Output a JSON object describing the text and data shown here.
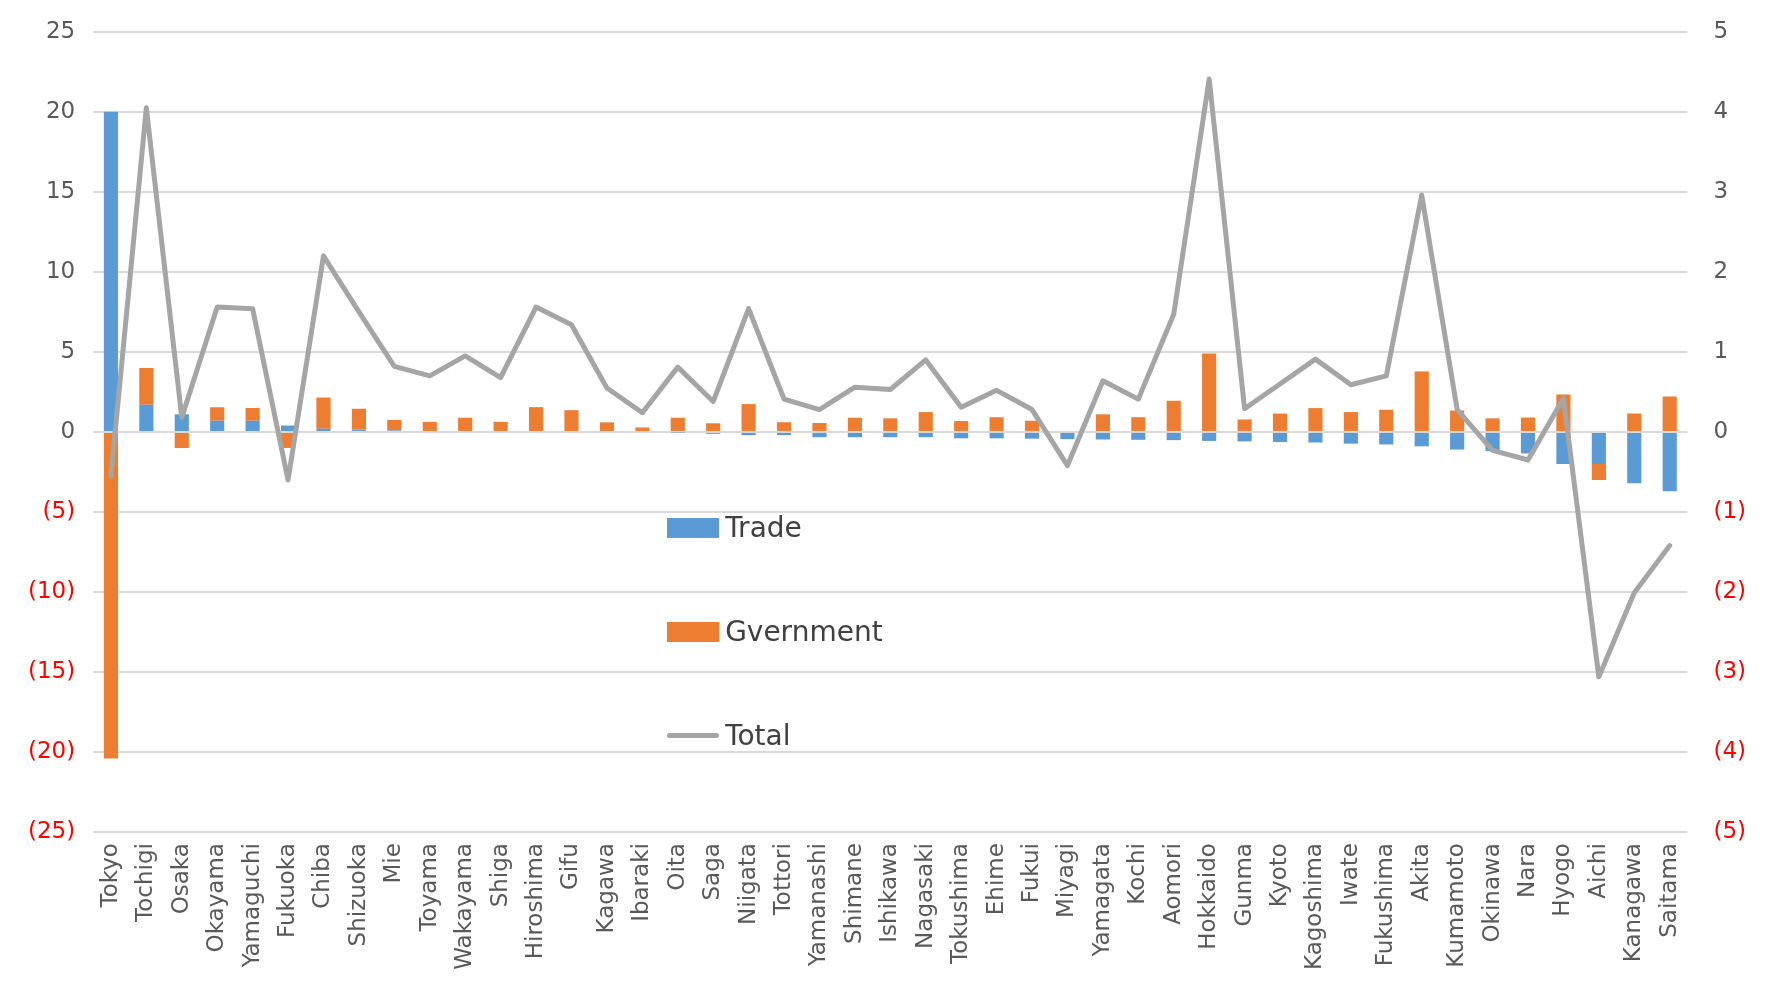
{
  "chart_data": {
    "type": "bar",
    "stacked": true,
    "grid": "y",
    "legend": "center",
    "categories": [
      "Tokyo",
      "Tochigi",
      "Osaka",
      "Okayama",
      "Yamaguchi",
      "Fukuoka",
      "Chiba",
      "Shizuoka",
      "Mie",
      "Toyama",
      "Wakayama",
      "Shiga",
      "Hiroshima",
      "Gifu",
      "Kagawa",
      "Ibaraki",
      "Oita",
      "Saga",
      "Niigata",
      "Tottori",
      "Yamanashi",
      "Shimane",
      "Ishikawa",
      "Nagasaki",
      "Tokushima",
      "Ehime",
      "Fukui",
      "Miyagi",
      "Yamagata",
      "Kochi",
      "Aomori",
      "Hokkaido",
      "Gunma",
      "Kyoto",
      "Kagoshima",
      "Iwate",
      "Fukushima",
      "Akita",
      "Kumamoto",
      "Okinawa",
      "Nara",
      "Hyogo",
      "Aichi",
      "Kanagawa",
      "Saitama"
    ],
    "series": [
      {
        "name": "Trade",
        "color": "#5b9bd5",
        "values": [
          20,
          1.7,
          1.1,
          0.7,
          0.7,
          0.4,
          0.2,
          0.15,
          0.1,
          null,
          null,
          0,
          0,
          0,
          0,
          null,
          -0.03,
          -0.12,
          -0.2,
          -0.2,
          -0.33,
          -0.33,
          -0.33,
          -0.33,
          -0.4,
          -0.4,
          -0.42,
          -0.45,
          -0.47,
          -0.49,
          -0.51,
          -0.56,
          -0.59,
          -0.63,
          -0.66,
          -0.73,
          -0.78,
          -0.9,
          -1.1,
          -1.2,
          -1.34,
          -2.0,
          -2.0,
          -3.2,
          -3.7
        ]
      },
      {
        "name": "Gvernment",
        "color": "#ed7d31",
        "values": [
          -20.4,
          2.3,
          -1.0,
          0.85,
          0.8,
          -1.0,
          1.95,
          1.3,
          0.65,
          0.63,
          0.89,
          0.63,
          1.55,
          1.36,
          0.6,
          0.28,
          0.89,
          0.54,
          1.74,
          0.61,
          0.56,
          0.89,
          0.85,
          1.24,
          0.68,
          0.92,
          0.7,
          0,
          1.1,
          0.92,
          1.95,
          4.9,
          0.78,
          1.15,
          1.49,
          1.24,
          1.39,
          3.78,
          1.34,
          0.85,
          0.9,
          2.34,
          -1.0,
          1.15,
          2.22
        ]
      },
      {
        "name": "Total",
        "type": "line",
        "axis": "y2",
        "color": "#a5a5a5",
        "values": [
          -0.55,
          4.05,
          0.18,
          1.56,
          1.54,
          -0.6,
          2.2,
          1.5,
          0.82,
          0.7,
          0.95,
          0.68,
          1.56,
          1.34,
          0.55,
          0.24,
          0.81,
          0.38,
          1.54,
          0.41,
          0.28,
          0.56,
          0.53,
          0.9,
          0.31,
          0.52,
          0.28,
          -0.42,
          0.64,
          0.41,
          1.47,
          4.41,
          0.29,
          0.6,
          0.91,
          0.59,
          0.7,
          2.96,
          0.28,
          -0.23,
          -0.35,
          0.42,
          -3.06,
          -2.01,
          -1.42
        ]
      }
    ],
    "ylim": [
      -25,
      25
    ],
    "yticks": [
      {
        "value": -25,
        "label": "(25)"
      },
      {
        "value": -20,
        "label": "(20)"
      },
      {
        "value": -15,
        "label": "(15)"
      },
      {
        "value": -10,
        "label": "(10)"
      },
      {
        "value": -5,
        "label": "(5)"
      },
      0,
      5,
      10,
      15,
      20,
      25
    ],
    "y2lim": [
      -5,
      5
    ],
    "y2ticks": [
      {
        "value": -5,
        "label": "(5)"
      },
      {
        "value": -4,
        "label": "(4)"
      },
      {
        "value": -3,
        "label": "(3)"
      },
      {
        "value": -2,
        "label": "(2)"
      },
      {
        "value": -1,
        "label": "(1)"
      },
      0,
      1,
      2,
      3,
      4,
      5
    ],
    "marker": "none",
    "line_style": "solid"
  }
}
